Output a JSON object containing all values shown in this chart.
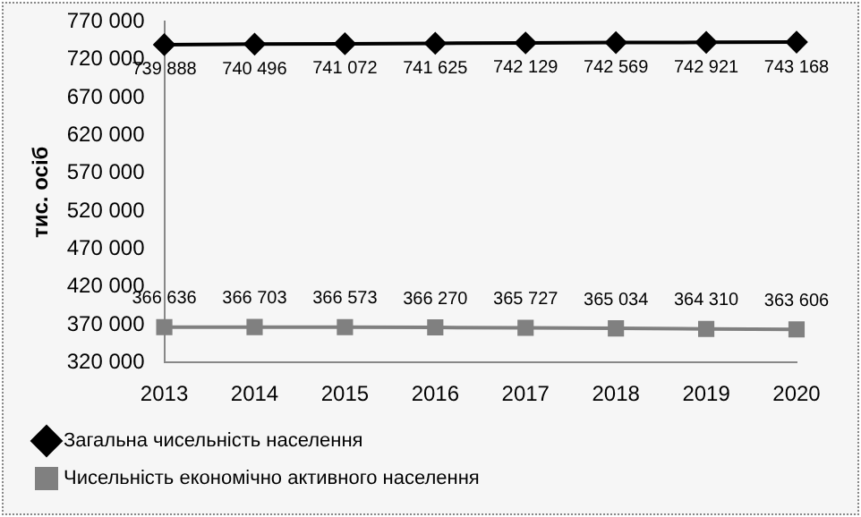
{
  "chart_data": {
    "type": "line",
    "ylabel": "тис. осіб",
    "categories": [
      "2013",
      "2014",
      "2015",
      "2016",
      "2017",
      "2018",
      "2019",
      "2020"
    ],
    "series": [
      {
        "name": "Загальна чисельність населення",
        "color": "#000000",
        "marker": "diamond",
        "values": [
          739888,
          740496,
          741072,
          741625,
          742129,
          742569,
          742921,
          743168
        ],
        "value_labels": [
          "739 888",
          "740 496",
          "741 072",
          "741 625",
          "742 129",
          "742 569",
          "742 921",
          "743 168"
        ]
      },
      {
        "name": "Чисельність економічно активного населення",
        "color": "#808080",
        "marker": "square",
        "values": [
          366636,
          366703,
          366573,
          366270,
          365727,
          365034,
          364310,
          363606
        ],
        "value_labels": [
          "366 636",
          "366 703",
          "366 573",
          "366 270",
          "365 727",
          "365 034",
          "364 310",
          "363 606"
        ]
      }
    ],
    "ylim": [
      320000,
      770000
    ],
    "yticks": [
      {
        "value": 320000,
        "label": "320 000"
      },
      {
        "value": 370000,
        "label": "370 000"
      },
      {
        "value": 420000,
        "label": "420 000"
      },
      {
        "value": 470000,
        "label": "470 000"
      },
      {
        "value": 520000,
        "label": "520 000"
      },
      {
        "value": 570000,
        "label": "570 000"
      },
      {
        "value": 620000,
        "label": "620 000"
      },
      {
        "value": 670000,
        "label": "670 000"
      },
      {
        "value": 720000,
        "label": "720 000"
      },
      {
        "value": 770000,
        "label": "770 000"
      }
    ],
    "grid": false,
    "legend": "bottom",
    "line_style": "solid"
  }
}
